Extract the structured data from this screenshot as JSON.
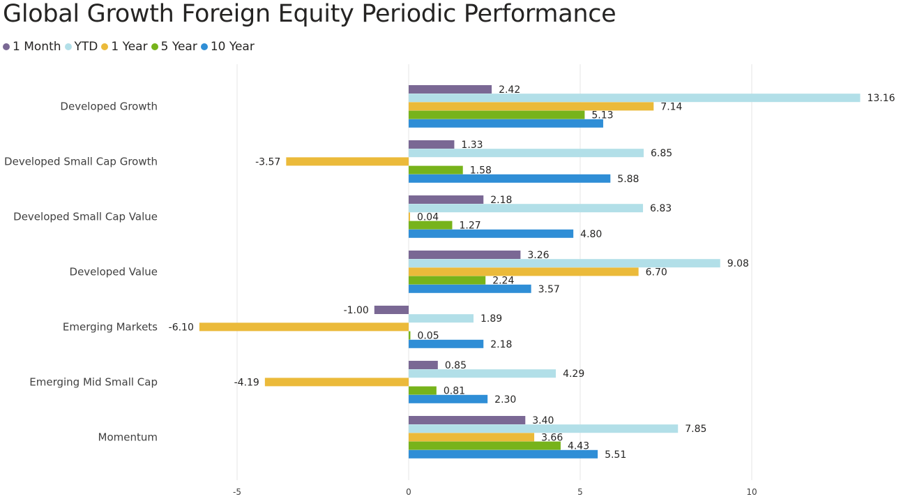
{
  "chart_data": {
    "type": "bar",
    "orientation": "horizontal",
    "title": "Global Growth Foreign Equity Periodic Performance",
    "categories": [
      "Developed Growth",
      "Developed Small Cap Growth",
      "Developed Small Cap Value",
      "Developed Value",
      "Emerging Markets",
      "Emerging Mid Small Cap",
      "Momentum"
    ],
    "series": [
      {
        "name": "1 Month",
        "color": "#7A6894",
        "values": [
          2.42,
          1.33,
          2.18,
          3.26,
          -1.0,
          0.85,
          3.4
        ]
      },
      {
        "name": "YTD",
        "color": "#B2DFE8",
        "values": [
          13.16,
          6.85,
          6.83,
          9.08,
          1.89,
          4.29,
          7.85
        ]
      },
      {
        "name": "1 Year",
        "color": "#EBBA3A",
        "values": [
          7.14,
          -3.57,
          0.04,
          6.7,
          -6.1,
          -4.19,
          3.66
        ]
      },
      {
        "name": "5 Year",
        "color": "#77B31B",
        "values": [
          5.13,
          1.58,
          1.27,
          2.24,
          0.05,
          0.81,
          4.43
        ]
      },
      {
        "name": "10 Year",
        "color": "#2F8ED6",
        "values": [
          5.67,
          5.88,
          4.8,
          3.57,
          2.18,
          2.3,
          5.51
        ]
      }
    ],
    "data_labels": [
      [
        "2.42",
        "13.16",
        "7.14",
        "5.13",
        ""
      ],
      [
        "1.33",
        "6.85",
        "-3.57",
        "1.58",
        "5.88"
      ],
      [
        "2.18",
        "6.83",
        "0.04",
        "1.27",
        "4.80"
      ],
      [
        "3.26",
        "9.08",
        "6.70",
        "2.24",
        "3.57"
      ],
      [
        "-1.00",
        "1.89",
        "-6.10",
        "0.05",
        "2.18"
      ],
      [
        "0.85",
        "4.29",
        "-4.19",
        "0.81",
        "2.30"
      ],
      [
        "3.40",
        "7.85",
        "3.66",
        "4.43",
        "5.51"
      ]
    ],
    "x_ticks": [
      -5,
      0,
      5,
      10
    ],
    "x_tick_labels": [
      "-5",
      "0",
      "5",
      "10"
    ],
    "xlim": [
      -10,
      14
    ],
    "grid": true,
    "legend_position": "top-left"
  }
}
